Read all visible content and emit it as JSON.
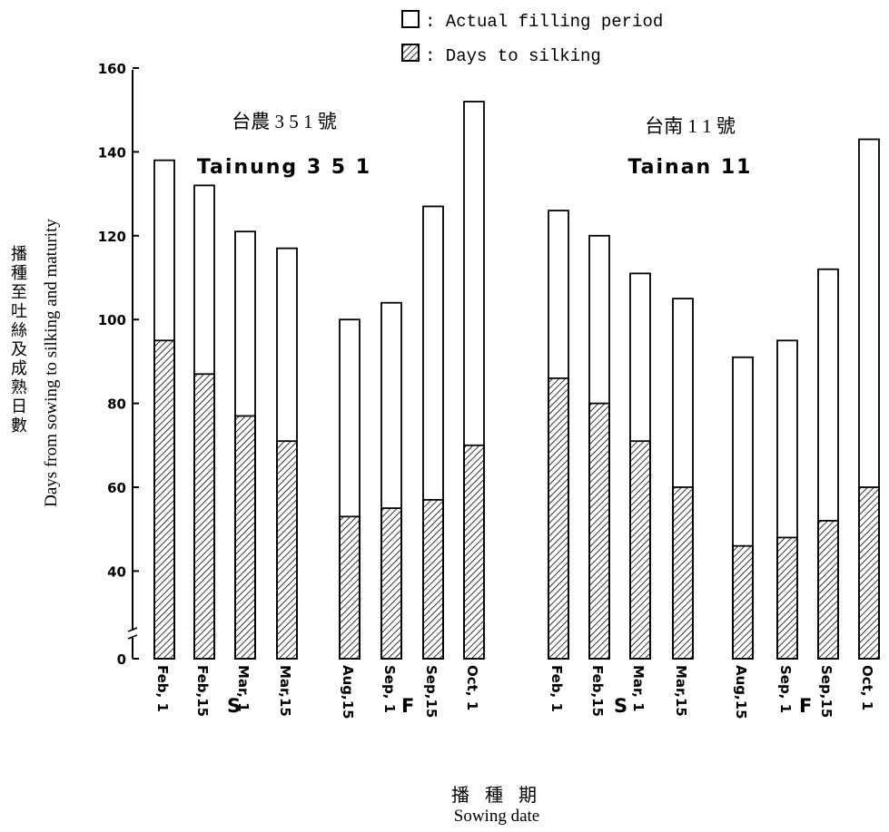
{
  "chart_data": {
    "type": "bar",
    "stacked": true,
    "legend": {
      "position": "top-right",
      "items": [
        {
          "symbol": "open",
          "text": ": Actual filling period"
        },
        {
          "symbol": "hatched",
          "text": ": Days to silking"
        }
      ]
    },
    "ylabel_zh": "播種至吐絲及成熟日數",
    "ylabel_en": "Days from sowing to silking and maturity",
    "xlabel_zh": "播 種 期",
    "xlabel_en": "Sowing date",
    "ylim": [
      0,
      160
    ],
    "y_axis_break": true,
    "yticks": [
      {
        "value": 0,
        "label": "0"
      },
      {
        "value": 40,
        "label": "40"
      },
      {
        "value": 60,
        "label": "60"
      },
      {
        "value": 80,
        "label": "80"
      },
      {
        "value": 100,
        "label": "100"
      },
      {
        "value": 120,
        "label": "120"
      },
      {
        "value": 140,
        "label": "140"
      },
      {
        "value": 160,
        "label": "160"
      }
    ],
    "groups": [
      {
        "title_zh": "台農 3 5 1 號",
        "title_en": "Tainung  3 5 1",
        "categories": [
          "Feb, 1",
          "Feb,15",
          "Mar, 1",
          "Mar,15",
          "Aug,15",
          "Sep, 1",
          "Sep,15",
          "Oct, 1"
        ],
        "season_labels": [
          "S",
          "F"
        ],
        "days_to_silking": [
          95,
          87,
          77,
          71,
          53,
          55,
          57,
          70
        ],
        "days_to_maturity": [
          138,
          132,
          121,
          117,
          100,
          104,
          127,
          152
        ]
      },
      {
        "title_zh": "台南 1 1 號",
        "title_en": "Tainan  11",
        "categories": [
          "Feb, 1",
          "Feb,15",
          "Mar, 1",
          "Mar,15",
          "Aug,15",
          "Sep, 1",
          "Sep,15",
          "Oct, 1"
        ],
        "season_labels": [
          "S",
          "F"
        ],
        "days_to_silking": [
          86,
          80,
          71,
          60,
          46,
          48,
          52,
          60
        ],
        "days_to_maturity": [
          126,
          120,
          111,
          105,
          91,
          95,
          112,
          143
        ]
      }
    ],
    "colors": {
      "bar_fill": "#ffffff",
      "stroke": "#000000",
      "hatch": "#000000"
    }
  }
}
